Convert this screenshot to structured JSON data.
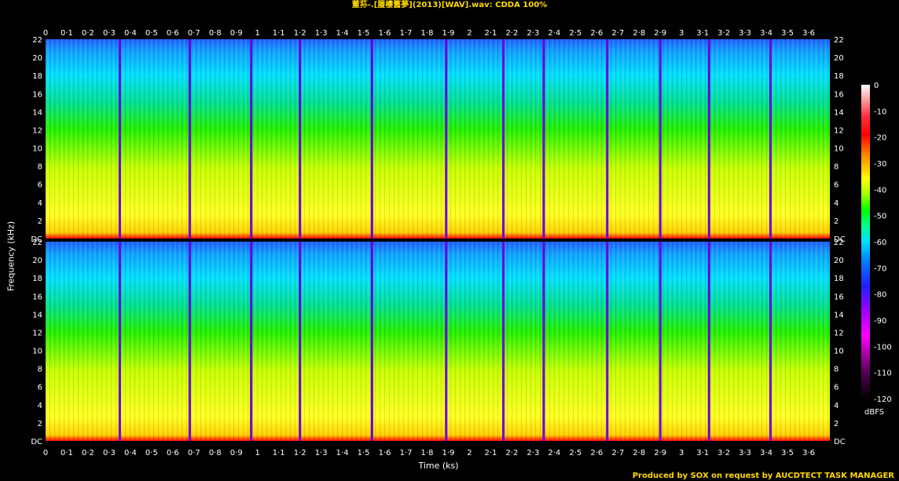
{
  "title": "董荪-.[蜃樓舊夢](2013)[WAV].wav: CDDA 100%",
  "credit": "Produced by SOX on request by AUCDTECT TASK MANAGER",
  "chart_data": {
    "type": "heatmap",
    "title": "董荪-.[蜃樓舊夢](2013)[WAV].wav: CDDA 100%",
    "xlabel": "Time (ks)",
    "ylabel": "Frequency (kHz)",
    "colorbar_label": "dBFS",
    "xlim": [
      0,
      3.7
    ],
    "ylim": [
      0,
      22
    ],
    "x_ticks": [
      "0",
      "0·1",
      "0·2",
      "0·3",
      "0·4",
      "0·5",
      "0·6",
      "0·7",
      "0·8",
      "0·9",
      "1",
      "1·1",
      "1·2",
      "1·3",
      "1·4",
      "1·5",
      "1·6",
      "1·7",
      "1·8",
      "1·9",
      "2",
      "2·1",
      "2·2",
      "2·3",
      "2·4",
      "2·5",
      "2·6",
      "2·7",
      "2·8",
      "2·9",
      "3",
      "3·1",
      "3·2",
      "3·3",
      "3·4",
      "3·5",
      "3·6"
    ],
    "y_ticks": [
      "DC",
      "2",
      "4",
      "6",
      "8",
      "10",
      "12",
      "14",
      "16",
      "18",
      "20",
      "22"
    ],
    "colorbar_ticks": [
      "0",
      "-10",
      "-20",
      "-30",
      "-40",
      "-50",
      "-60",
      "-70",
      "-80",
      "-90",
      "-100",
      "-110",
      "-120"
    ],
    "colorbar_range": [
      -120,
      0
    ],
    "channels": 2,
    "track_boundaries_ks": [
      0.35,
      0.68,
      0.97,
      1.2,
      1.54,
      1.89,
      2.16,
      2.35,
      2.65,
      2.9,
      3.13,
      3.42
    ],
    "colors": {
      "title": "#ffd800",
      "credit": "#ffd800"
    }
  }
}
